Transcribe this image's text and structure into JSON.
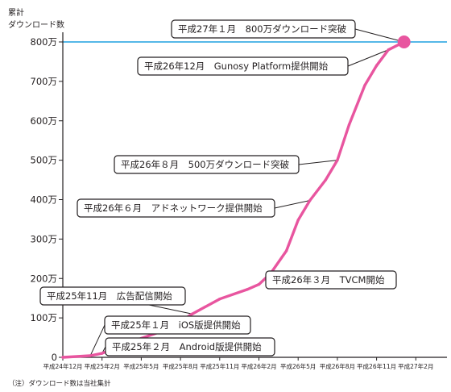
{
  "chart_data": {
    "type": "line",
    "ylabel_line1": "累計",
    "ylabel_line2": "ダウンロード数",
    "ylim": [
      0,
      800
    ],
    "yticks": [
      {
        "value": 0,
        "label": "0"
      },
      {
        "value": 100,
        "label": "100万"
      },
      {
        "value": 200,
        "label": "200万"
      },
      {
        "value": 300,
        "label": "300万"
      },
      {
        "value": 400,
        "label": "400万"
      },
      {
        "value": 500,
        "label": "500万"
      },
      {
        "value": 600,
        "label": "600万"
      },
      {
        "value": 700,
        "label": "700万"
      },
      {
        "value": 800,
        "label": "800万",
        "highlight": true
      }
    ],
    "xticks": [
      "平成24年12月",
      "平成25年2月",
      "平成25年5月",
      "平成25年8月",
      "平成25年11月",
      "平成26年2月",
      "平成26年5月",
      "平成26年8月",
      "平成26年11月",
      "平成27年2月"
    ],
    "series": [
      {
        "color": "#e8559f",
        "points": [
          {
            "x": 0.0,
            "y": 0
          },
          {
            "x": 0.7,
            "y": 4
          },
          {
            "x": 1.0,
            "y": 10
          },
          {
            "x": 1.3,
            "y": 22
          },
          {
            "x": 2.0,
            "y": 48
          },
          {
            "x": 2.7,
            "y": 72
          },
          {
            "x": 3.3,
            "y": 110
          },
          {
            "x": 4.0,
            "y": 148
          },
          {
            "x": 4.7,
            "y": 172
          },
          {
            "x": 5.0,
            "y": 185
          },
          {
            "x": 5.3,
            "y": 213
          },
          {
            "x": 5.7,
            "y": 270
          },
          {
            "x": 6.0,
            "y": 348
          },
          {
            "x": 6.3,
            "y": 398
          },
          {
            "x": 6.7,
            "y": 450
          },
          {
            "x": 7.0,
            "y": 500
          },
          {
            "x": 7.3,
            "y": 590
          },
          {
            "x": 7.7,
            "y": 690
          },
          {
            "x": 8.0,
            "y": 740
          },
          {
            "x": 8.3,
            "y": 780
          },
          {
            "x": 8.7,
            "y": 800
          }
        ]
      }
    ],
    "target_line": {
      "value": 800,
      "color": "#1ea0e0"
    },
    "endpoint_color": "#e8559f",
    "annotations": [
      {
        "text": "平成27年１月　800万ダウンロード突破",
        "x": 8.7,
        "y": 800
      },
      {
        "text": "平成26年12月　Gunosy Platform提供開始",
        "x": 8.3,
        "y": 780
      },
      {
        "text": "平成26年８月　500万ダウンロード突破",
        "x": 7.0,
        "y": 500
      },
      {
        "text": "平成26年６月　アドネットワーク提供開始",
        "x": 6.3,
        "y": 398
      },
      {
        "text": "平成26年３月　TVCM開始",
        "x": 5.3,
        "y": 213
      },
      {
        "text": "平成25年11月　広告配信開始",
        "x": 3.3,
        "y": 110
      },
      {
        "text": "平成25年１月　iOS版提供開始",
        "x": 0.7,
        "y": 4
      },
      {
        "text": "平成25年２月　Android版提供開始",
        "x": 1.0,
        "y": 10
      }
    ]
  },
  "footnote": "（注）ダウンロード数は当社集計"
}
